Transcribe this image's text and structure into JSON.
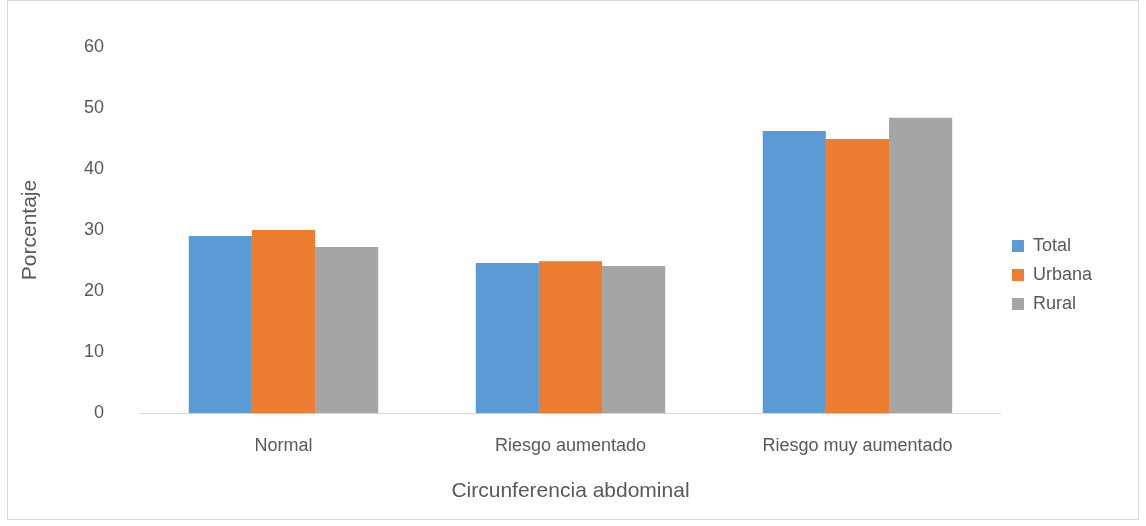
{
  "chart_data": {
    "type": "bar",
    "xlabel": "Circunferencia abdominal",
    "ylabel": "Porcentaje",
    "categories": [
      "Normal",
      "Riesgo aumentado",
      "Riesgo muy aumentado"
    ],
    "series": [
      {
        "name": "Total",
        "color": "#5b9bd5",
        "values": [
          29,
          24.6,
          46.2
        ]
      },
      {
        "name": "Urbana",
        "color": "#ed7d31",
        "values": [
          30,
          24.9,
          44.9
        ]
      },
      {
        "name": "Rural",
        "color": "#a5a5a5",
        "values": [
          27.2,
          24.1,
          48.4
        ]
      }
    ],
    "ylim": [
      0,
      60
    ],
    "yticks": [
      0,
      10,
      20,
      30,
      40,
      50,
      60
    ],
    "grid": false,
    "legend": "right"
  }
}
